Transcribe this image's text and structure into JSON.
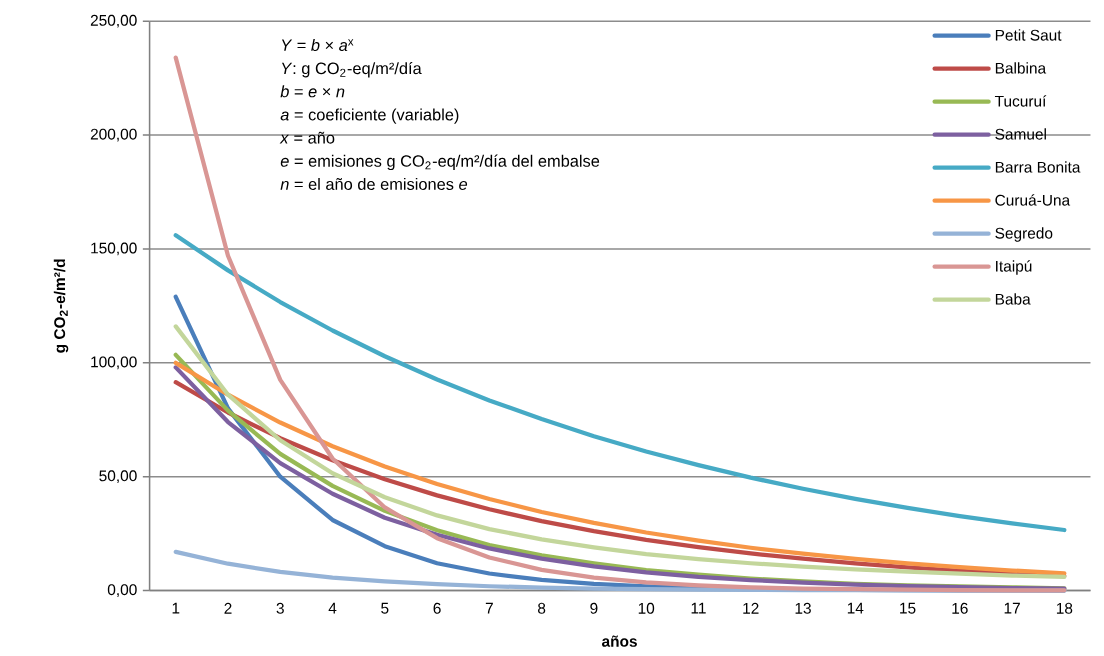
{
  "chart_data": {
    "type": "line",
    "xlabel": "años",
    "ylabel": "g CO$_{2}$-e/m²/d",
    "categories": [
      "1",
      "2",
      "3",
      "4",
      "5",
      "6",
      "7",
      "8",
      "9",
      "10",
      "11",
      "12",
      "13",
      "14",
      "15",
      "16",
      "17",
      "18"
    ],
    "ylim": [
      0,
      250
    ],
    "yticks": [
      {
        "value": 0,
        "label": "0,00"
      },
      {
        "value": 50,
        "label": "50,00"
      },
      {
        "value": 100,
        "label": "100,00"
      },
      {
        "value": 150,
        "label": "150,00"
      },
      {
        "value": 200,
        "label": "200,00"
      },
      {
        "value": 250,
        "label": "250,00"
      }
    ],
    "grid": "y",
    "legend": "top right",
    "marker": "none",
    "line_style": "solid",
    "annotations": [
      "*Y* = *b* × *a*$^{x}$",
      "*Y*: g CO$_{2}$-eq/m²/día",
      "*b* = *e* × *n*",
      "*a* = coeficiente  (variable)",
      "*x* = año",
      "*e* = emisiones g CO$_{2}$-eq/m²/día del embalse",
      "*n* = el año de emisiones *e*"
    ],
    "series": [
      {
        "name": "Petit Saut",
        "color": "#4a7ebb",
        "values": [
          129,
          80,
          50,
          31,
          19.5,
          12,
          7.5,
          4.7,
          2.9,
          1.8,
          1.1,
          0.7,
          0.4,
          0.3,
          0.2,
          0.1,
          0.1,
          0
        ]
      },
      {
        "name": "Balbina",
        "color": "#be4b48",
        "values": [
          91.5,
          78.2,
          66.9,
          57.2,
          48.9,
          41.8,
          35.7,
          30.5,
          26.1,
          22.3,
          19.1,
          16.3,
          14,
          11.9,
          10.2,
          8.7,
          7.5,
          6.4
        ]
      },
      {
        "name": "Tucuruí",
        "color": "#98b954",
        "values": [
          103.5,
          79,
          60,
          46,
          35,
          26.5,
          20,
          15.5,
          12,
          9,
          7,
          5.3,
          4,
          3,
          2.3,
          1.8,
          1.4,
          1
        ]
      },
      {
        "name": "Samuel",
        "color": "#7d60a0",
        "values": [
          98,
          74,
          56,
          42.5,
          32,
          24.5,
          18.5,
          14,
          10.6,
          8,
          6,
          4.6,
          3.5,
          2.6,
          2,
          1.5,
          1.1,
          0.9
        ]
      },
      {
        "name": "Barra Bonita",
        "color": "#46aac5",
        "values": [
          156,
          140.6,
          126.7,
          114.2,
          102.9,
          92.7,
          83.5,
          75.3,
          67.8,
          61.1,
          55.1,
          49.6,
          44.7,
          40.3,
          36.3,
          32.7,
          29.5,
          26.6
        ]
      },
      {
        "name": "Curuá-Una",
        "color": "#f79646",
        "values": [
          100,
          86,
          73.8,
          63.4,
          54.5,
          46.8,
          40.2,
          34.5,
          29.7,
          25.5,
          21.9,
          18.8,
          16.2,
          13.9,
          11.9,
          10.3,
          8.8,
          7.6
        ]
      },
      {
        "name": "Segredo",
        "color": "#95b3d7",
        "values": [
          17,
          11.8,
          8.2,
          5.7,
          4,
          2.8,
          1.9,
          1.3,
          0.9,
          0.6,
          0.4,
          0.3,
          0.2,
          0.2,
          0.1,
          0.1,
          0,
          0
        ]
      },
      {
        "name": "Itaipú",
        "color": "#d99694",
        "values": [
          234,
          147,
          92.5,
          58,
          36.5,
          23,
          14.5,
          9.1,
          5.7,
          3.6,
          2.3,
          1.4,
          0.9,
          0.6,
          0.4,
          0.2,
          0.1,
          0.1
        ]
      },
      {
        "name": "Baba",
        "color": "#c3d69b",
        "values": [
          116,
          86,
          66,
          51.5,
          41,
          33,
          27,
          22.5,
          19,
          16,
          13.8,
          12,
          10.5,
          9.3,
          8.3,
          7.4,
          6.6,
          6
        ]
      }
    ]
  }
}
